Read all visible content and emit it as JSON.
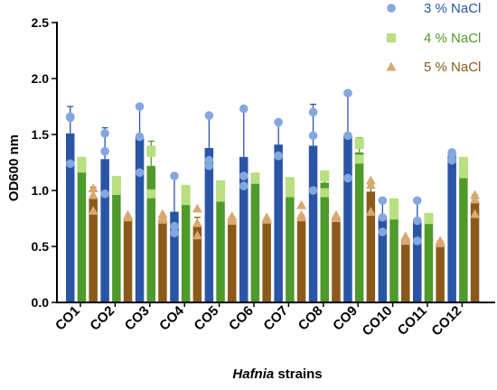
{
  "chart_data": {
    "type": "bar",
    "title": "",
    "xlabel": "Hafnia strains",
    "xlabel_italic_word": "Hafnia",
    "xlabel_rest": " strains",
    "ylabel": "OD600 nm",
    "ylim": [
      0,
      2.5
    ],
    "yticks": [
      "0.0",
      "0.5",
      "1.0",
      "1.5",
      "2.0",
      "2.5"
    ],
    "grid": false,
    "legend_position": "top-right",
    "categories": [
      "CO1",
      "CO2",
      "CO3",
      "CO4",
      "CO5",
      "CO6",
      "CO7",
      "CO8",
      "CO9",
      "CO10",
      "CO11",
      "CO12"
    ],
    "series": [
      {
        "name": "3 % NaCl",
        "bar_color": "#2a55a6",
        "point_color": "#84a7dd",
        "marker": "circle",
        "values": [
          1.51,
          1.28,
          1.47,
          0.81,
          1.38,
          1.3,
          1.41,
          1.4,
          1.49,
          0.77,
          0.73,
          1.31
        ],
        "errors": [
          0.24,
          0.28,
          0.3,
          0.33,
          0.29,
          0.44,
          0.21,
          0.37,
          0.39,
          0.15,
          0.19,
          0.03
        ],
        "points": [
          [
            1.66,
            1.65,
            1.24
          ],
          [
            1.51,
            1.35,
            0.97
          ],
          [
            1.75,
            1.48,
            1.16
          ],
          [
            1.13,
            0.68,
            0.62
          ],
          [
            1.67,
            1.27,
            1.22
          ],
          [
            1.73,
            1.13,
            1.04
          ],
          [
            1.61,
            1.31,
            1.31
          ],
          [
            1.7,
            1.49,
            1.0
          ],
          [
            1.87,
            1.49,
            1.11
          ],
          [
            0.91,
            0.76,
            0.63
          ],
          [
            0.91,
            0.73,
            0.55
          ],
          [
            1.34,
            1.32,
            1.27
          ]
        ]
      },
      {
        "name": "4 % NaCl",
        "bar_color": "#4e9a2a",
        "point_color": "#b8df80",
        "marker": "square",
        "values": [
          1.23,
          1.05,
          1.22,
          0.91,
          1.0,
          1.1,
          1.03,
          1.07,
          1.34,
          0.84,
          0.75,
          1.21
        ],
        "errors": [
          0.04,
          0.03,
          0.22,
          0.12,
          0.06,
          0.03,
          0.07,
          0.09,
          0.13,
          0.06,
          0.02,
          0.07
        ],
        "points": [
          [
            1.26,
            1.25,
            1.2
          ],
          [
            1.09,
            1.07,
            1.0
          ],
          [
            1.36,
            1.34,
            0.97
          ],
          [
            1.01,
            0.97,
            0.91
          ],
          [
            1.05,
            1.02,
            0.94
          ],
          [
            1.12,
            1.1,
            1.1
          ],
          [
            1.08,
            1.06,
            0.98
          ],
          [
            1.14,
            1.12,
            0.98
          ],
          [
            1.43,
            1.41,
            1.28
          ],
          [
            0.89,
            0.85,
            0.78
          ],
          [
            0.76,
            0.75,
            0.74
          ],
          [
            1.26,
            1.2,
            1.15
          ]
        ]
      },
      {
        "name": "5 % NaCl",
        "bar_color": "#8b5a1b",
        "point_color": "#d9a870",
        "marker": "triangle",
        "values": [
          0.93,
          0.75,
          0.74,
          0.68,
          0.72,
          0.72,
          0.74,
          0.72,
          0.99,
          0.56,
          0.53,
          0.89
        ],
        "errors": [
          0.1,
          0.02,
          0.04,
          0.08,
          0.03,
          0.02,
          0.04,
          0.03,
          0.09,
          0.02,
          0.02,
          0.07
        ],
        "points": [
          [
            1.02,
            0.96,
            0.82
          ],
          [
            0.78,
            0.77,
            0.76
          ],
          [
            0.79,
            0.76,
            0.74
          ],
          [
            0.84,
            0.71,
            0.6
          ],
          [
            0.77,
            0.75,
            0.73
          ],
          [
            0.76,
            0.75,
            0.74
          ],
          [
            0.87,
            0.78,
            0.76
          ],
          [
            0.78,
            0.77,
            0.76
          ],
          [
            1.09,
            1.05,
            0.81
          ],
          [
            0.59,
            0.57,
            0.55
          ],
          [
            0.55,
            0.54,
            0.53
          ],
          [
            0.96,
            0.92,
            0.79
          ]
        ]
      }
    ]
  }
}
